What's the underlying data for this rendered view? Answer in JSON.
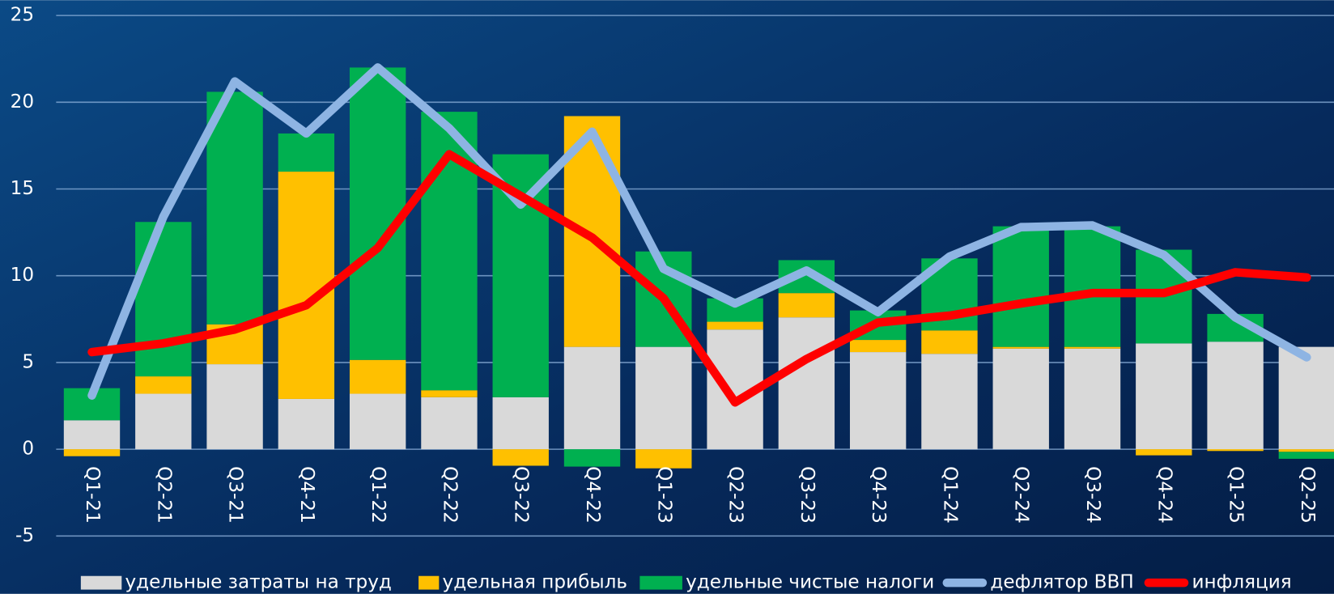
{
  "chart_data": {
    "type": "stacked-bar-line",
    "categories": [
      "Q1-21",
      "Q2-21",
      "Q3-21",
      "Q4-21",
      "Q1-22",
      "Q2-22",
      "Q3-22",
      "Q4-22",
      "Q1-23",
      "Q2-23",
      "Q3-23",
      "Q4-23",
      "Q1-24",
      "Q2-24",
      "Q3-24",
      "Q4-24",
      "Q1-25",
      "Q2-25"
    ],
    "series": [
      {
        "name": "удельные затраты на труд",
        "kind": "bar",
        "color": "#d9d9d9",
        "values": [
          1.67,
          3.2,
          4.9,
          2.9,
          3.2,
          3.0,
          3.0,
          5.9,
          5.9,
          6.9,
          7.6,
          5.6,
          5.5,
          5.8,
          5.8,
          6.1,
          6.2,
          5.9
        ]
      },
      {
        "name": "удельная прибыль",
        "kind": "bar",
        "color": "#ffc000",
        "values": [
          -0.4,
          1.0,
          2.3,
          13.1,
          1.95,
          0.4,
          -0.95,
          13.3,
          -1.1,
          0.45,
          1.4,
          0.7,
          1.35,
          0.1,
          0.1,
          -0.35,
          -0.1,
          -0.15
        ]
      },
      {
        "name": "удельные чистые налоги",
        "kind": "bar",
        "color": "#00b050",
        "values": [
          1.85,
          8.9,
          13.4,
          2.2,
          16.85,
          16.05,
          14.0,
          -1.0,
          5.5,
          1.35,
          1.9,
          1.7,
          4.15,
          6.95,
          6.95,
          5.4,
          1.6,
          -0.4
        ]
      },
      {
        "name": "дефлятор ВВП",
        "kind": "line",
        "color": "#8eb4e3",
        "values": [
          3.1,
          13.4,
          21.2,
          18.2,
          22.0,
          18.5,
          14.1,
          18.3,
          10.4,
          8.4,
          10.3,
          7.9,
          11.1,
          12.8,
          12.9,
          11.2,
          7.6,
          5.3
        ]
      },
      {
        "name": "инфляция",
        "kind": "line",
        "color": "#ff0000",
        "values": [
          5.6,
          6.1,
          6.9,
          8.3,
          11.6,
          17.0,
          14.6,
          12.2,
          8.7,
          2.7,
          5.2,
          7.3,
          7.7,
          8.4,
          9.0,
          9.0,
          10.2,
          9.9
        ]
      }
    ],
    "ylim": [
      -5,
      25
    ],
    "yticks": [
      -5,
      0,
      5,
      10,
      15,
      20,
      25
    ],
    "grid": true,
    "legend": "bottom"
  }
}
